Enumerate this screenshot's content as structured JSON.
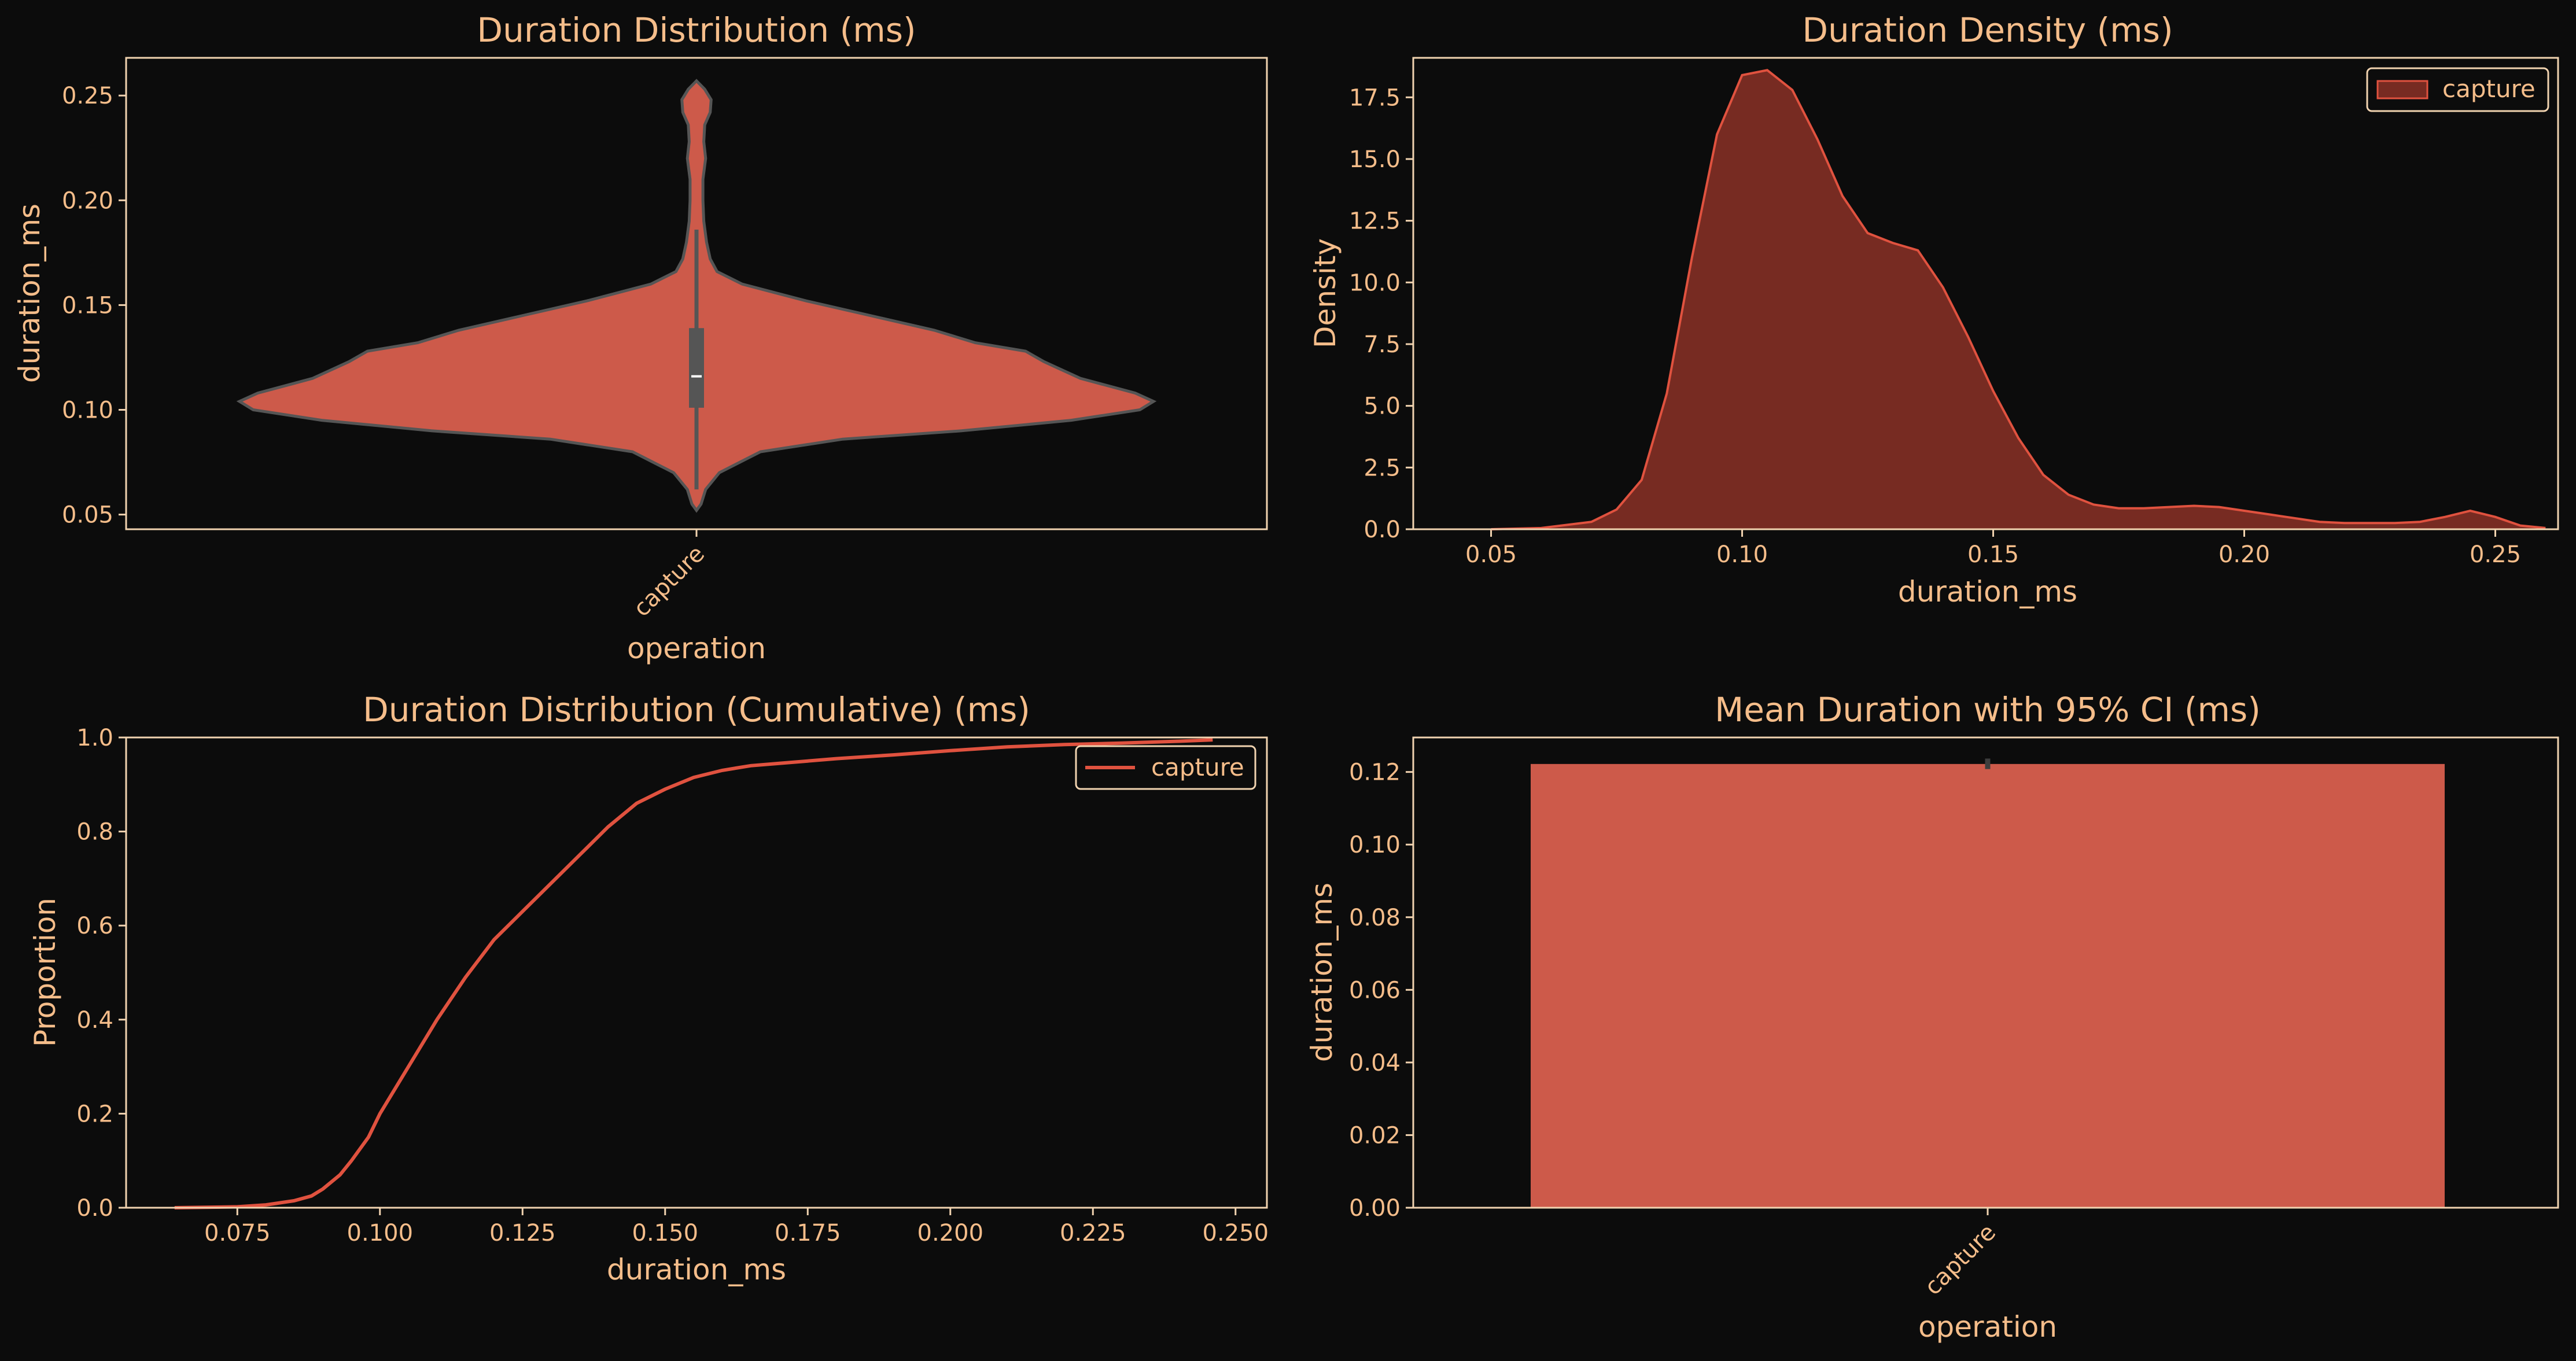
{
  "colors": {
    "background": "#0c0c0c",
    "text": "#f5bd8a",
    "frame": "#f1d3b0",
    "violin": "#cd5a4a",
    "kde_fill": "#772b22",
    "kde_line": "#e0523f",
    "ecdf_line": "#e0523f",
    "bar": "#cd5a4a"
  },
  "chart_data": [
    {
      "type": "violin",
      "title": "Duration Distribution (ms)",
      "xlabel": "operation",
      "ylabel": "duration_ms",
      "categories": [
        "capture"
      ],
      "ylim": [
        0.043,
        0.268
      ],
      "yticks": [
        0.05,
        0.1,
        0.15,
        0.2,
        0.25
      ],
      "ytick_labels": [
        "0.05",
        "0.10",
        "0.15",
        "0.20",
        "0.25"
      ],
      "profile": [
        [
          0.052,
          0.0
        ],
        [
          0.055,
          0.01
        ],
        [
          0.062,
          0.02
        ],
        [
          0.07,
          0.05
        ],
        [
          0.08,
          0.14
        ],
        [
          0.086,
          0.32
        ],
        [
          0.09,
          0.58
        ],
        [
          0.095,
          0.82
        ],
        [
          0.1,
          0.97
        ],
        [
          0.104,
          1.0
        ],
        [
          0.108,
          0.96
        ],
        [
          0.115,
          0.84
        ],
        [
          0.123,
          0.76
        ],
        [
          0.128,
          0.72
        ],
        [
          0.132,
          0.61
        ],
        [
          0.138,
          0.52
        ],
        [
          0.145,
          0.38
        ],
        [
          0.152,
          0.24
        ],
        [
          0.16,
          0.1
        ],
        [
          0.166,
          0.045
        ],
        [
          0.172,
          0.03
        ],
        [
          0.18,
          0.022
        ],
        [
          0.19,
          0.016
        ],
        [
          0.2,
          0.014
        ],
        [
          0.21,
          0.014
        ],
        [
          0.22,
          0.02
        ],
        [
          0.228,
          0.016
        ],
        [
          0.236,
          0.018
        ],
        [
          0.242,
          0.03
        ],
        [
          0.248,
          0.032
        ],
        [
          0.253,
          0.018
        ],
        [
          0.257,
          0.0
        ]
      ],
      "box": {
        "q1": 0.101,
        "median": 0.116,
        "q3": 0.139,
        "whisker_low": 0.062,
        "whisker_high": 0.186
      }
    },
    {
      "type": "area",
      "title": "Duration Density (ms)",
      "xlabel": "duration_ms",
      "ylabel": "Density",
      "legend": [
        "capture"
      ],
      "legend_position": "top-right",
      "xlim": [
        0.0345,
        0.2625
      ],
      "ylim": [
        0,
        19.1
      ],
      "xticks": [
        0.05,
        0.1,
        0.15,
        0.2,
        0.25
      ],
      "xtick_labels": [
        "0.05",
        "0.10",
        "0.15",
        "0.20",
        "0.25"
      ],
      "yticks": [
        0,
        2.5,
        5,
        7.5,
        10,
        12.5,
        15,
        17.5
      ],
      "ytick_labels": [
        "0.0",
        "2.5",
        "5.0",
        "7.5",
        "10.0",
        "12.5",
        "15.0",
        "17.5"
      ],
      "x": [
        0.05,
        0.06,
        0.07,
        0.075,
        0.08,
        0.085,
        0.09,
        0.095,
        0.1,
        0.105,
        0.11,
        0.115,
        0.12,
        0.125,
        0.13,
        0.135,
        0.14,
        0.145,
        0.15,
        0.155,
        0.16,
        0.165,
        0.17,
        0.175,
        0.18,
        0.185,
        0.19,
        0.195,
        0.2,
        0.205,
        0.21,
        0.215,
        0.22,
        0.225,
        0.23,
        0.235,
        0.24,
        0.245,
        0.25,
        0.255,
        0.26
      ],
      "y": [
        0.0,
        0.05,
        0.3,
        0.8,
        2.0,
        5.5,
        11.0,
        16.0,
        18.4,
        18.6,
        17.8,
        15.8,
        13.5,
        12.0,
        11.6,
        11.3,
        9.8,
        7.8,
        5.6,
        3.7,
        2.2,
        1.4,
        1.0,
        0.85,
        0.85,
        0.9,
        0.95,
        0.9,
        0.75,
        0.6,
        0.45,
        0.3,
        0.25,
        0.25,
        0.25,
        0.3,
        0.5,
        0.75,
        0.5,
        0.15,
        0.05
      ]
    },
    {
      "type": "line",
      "title": "Duration Distribution (Cumulative) (ms)",
      "xlabel": "duration_ms",
      "ylabel": "Proportion",
      "legend": [
        "capture"
      ],
      "legend_position": "top-right",
      "xlim": [
        0.0555,
        0.2555
      ],
      "ylim": [
        0,
        1.0
      ],
      "xticks": [
        0.075,
        0.1,
        0.125,
        0.15,
        0.175,
        0.2,
        0.225,
        0.25
      ],
      "xtick_labels": [
        "0.075",
        "0.100",
        "0.125",
        "0.150",
        "0.175",
        "0.200",
        "0.225",
        "0.250"
      ],
      "yticks": [
        0,
        0.2,
        0.4,
        0.6,
        0.8,
        1.0
      ],
      "ytick_labels": [
        "0.0",
        "0.2",
        "0.4",
        "0.6",
        "0.8",
        "1.0"
      ],
      "x": [
        0.064,
        0.075,
        0.08,
        0.085,
        0.088,
        0.09,
        0.093,
        0.095,
        0.098,
        0.1,
        0.105,
        0.11,
        0.115,
        0.12,
        0.125,
        0.13,
        0.135,
        0.14,
        0.145,
        0.15,
        0.155,
        0.16,
        0.165,
        0.17,
        0.175,
        0.18,
        0.19,
        0.2,
        0.21,
        0.22,
        0.23,
        0.24,
        0.246
      ],
      "y": [
        0.0,
        0.002,
        0.006,
        0.015,
        0.025,
        0.04,
        0.07,
        0.1,
        0.15,
        0.2,
        0.3,
        0.4,
        0.49,
        0.57,
        0.63,
        0.69,
        0.75,
        0.81,
        0.86,
        0.89,
        0.915,
        0.93,
        0.94,
        0.945,
        0.95,
        0.955,
        0.963,
        0.972,
        0.98,
        0.985,
        0.988,
        0.992,
        0.995
      ]
    },
    {
      "type": "bar",
      "title": "Mean Duration with 95% CI (ms)",
      "xlabel": "operation",
      "ylabel": "duration_ms",
      "categories": [
        "capture"
      ],
      "values": [
        0.1222
      ],
      "ci": [
        0.1208,
        0.1237
      ],
      "ylim": [
        0,
        0.1295
      ],
      "yticks": [
        0,
        0.02,
        0.04,
        0.06,
        0.08,
        0.1,
        0.12
      ],
      "ytick_labels": [
        "0.00",
        "0.02",
        "0.04",
        "0.06",
        "0.08",
        "0.10",
        "0.12"
      ]
    }
  ]
}
